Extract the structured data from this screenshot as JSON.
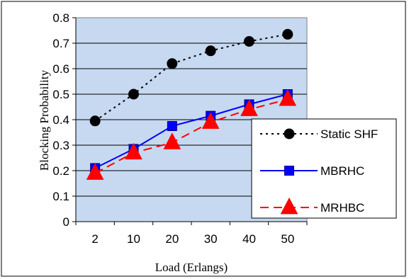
{
  "chart_data": {
    "type": "line",
    "title": "",
    "xlabel": "Load (Erlangs)",
    "ylabel": "Blocking Probability",
    "categories": [
      "2",
      "10",
      "20",
      "30",
      "40",
      "50"
    ],
    "ylim": [
      0,
      0.8
    ],
    "yticks": [
      "0",
      "0.1",
      "0.2",
      "0.3",
      "0.4",
      "0.5",
      "0.6",
      "0.7",
      "0.8"
    ],
    "grid": true,
    "legend_position": "bottom-right",
    "plot_background": "#c6d9f1",
    "series": [
      {
        "name": "Static SHF",
        "values": [
          0.395,
          0.5,
          0.62,
          0.67,
          0.707,
          0.735
        ],
        "color": "#000000",
        "dash": "dotted",
        "marker": "circle"
      },
      {
        "name": "MBRHC",
        "values": [
          0.21,
          0.285,
          0.375,
          0.415,
          0.46,
          0.5
        ],
        "color": "#0000ff",
        "dash": "solid",
        "marker": "square"
      },
      {
        "name": "MRHBC",
        "values": [
          0.19,
          0.27,
          0.31,
          0.39,
          0.44,
          0.48
        ],
        "color": "#ff0000",
        "dash": "dashed",
        "marker": "triangle"
      }
    ]
  }
}
